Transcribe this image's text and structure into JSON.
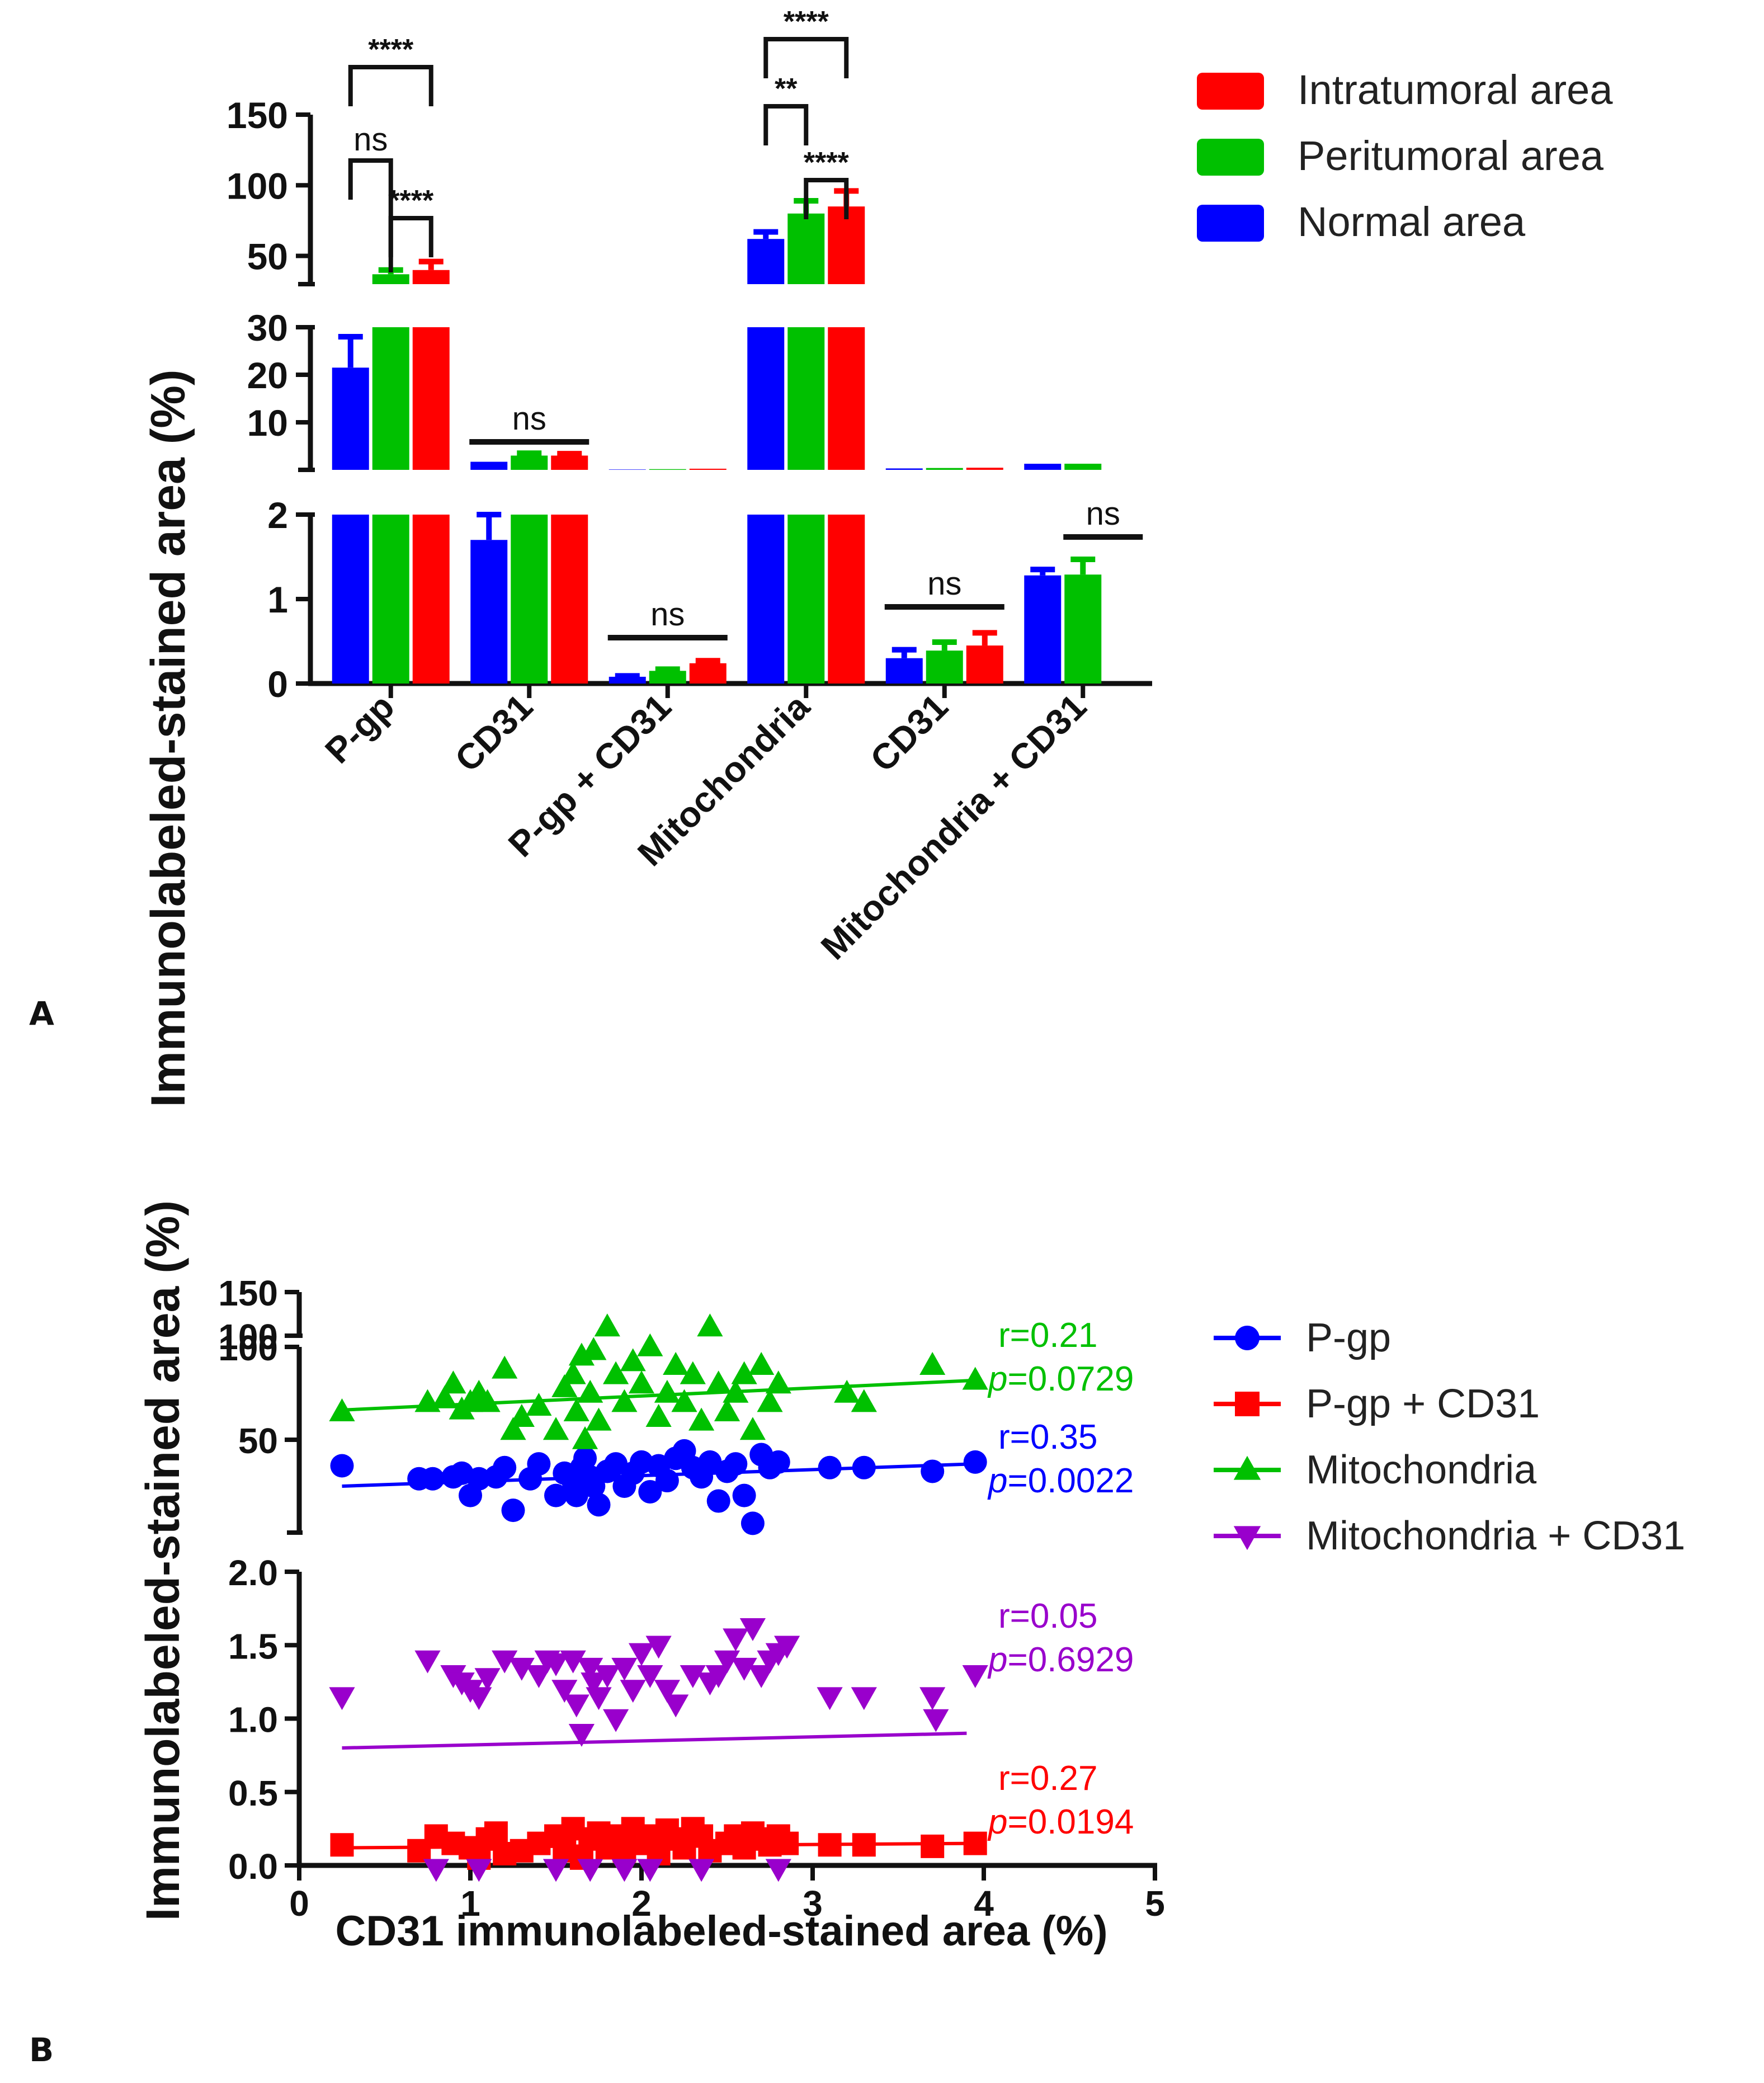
{
  "panel_labels": {
    "a": "A",
    "b": "B"
  },
  "chart_data": [
    {
      "type": "bar",
      "panel": "A",
      "ylabel": "Immunolabeled-stained area (%)",
      "y_segments": [
        {
          "range": [
            0,
            2
          ],
          "ticks": [
            "0",
            "1",
            "2"
          ]
        },
        {
          "range": [
            0,
            30
          ],
          "ticks": [
            "10",
            "20",
            "30"
          ]
        },
        {
          "range": [
            30,
            150
          ],
          "ticks": [
            "50",
            "100",
            "150"
          ]
        }
      ],
      "categories": [
        "P-gp",
        "CD31",
        "P-gp + CD31",
        "Mitochondria",
        "CD31",
        "Mitochondria + CD31"
      ],
      "series": [
        {
          "name": "Intratumoral area",
          "color": "#ff0000",
          "values": [
            40,
            3,
            0.24,
            85,
            0.45,
            null
          ],
          "errors": [
            6,
            0.4,
            0.03,
            11,
            0.15,
            null
          ]
        },
        {
          "name": "Peritumoral area",
          "color": "#00c000",
          "values": [
            37,
            3,
            0.15,
            80,
            0.39,
            1.29
          ],
          "errors": [
            3,
            0.5,
            0.02,
            9,
            0.1,
            0.18
          ]
        },
        {
          "name": "Normal area",
          "color": "#0000ff",
          "values": [
            21.5,
            1.7,
            0.08,
            62,
            0.3,
            1.28
          ],
          "errors": [
            6.5,
            0.3,
            0.01,
            5,
            0.1,
            0.07
          ]
        }
      ],
      "legend": [
        "Intratumoral area",
        "Peritumoral area",
        "Normal area"
      ],
      "legend_position": "top-right",
      "significance": [
        {
          "group": 0,
          "from": 0,
          "to": 1,
          "label": "****"
        },
        {
          "group": 0,
          "from": 1,
          "to": 2,
          "label": "ns"
        },
        {
          "group": 0,
          "from": 0,
          "to": 2,
          "label": "****"
        },
        {
          "group": 1,
          "from": 0,
          "to": 2,
          "label": "ns"
        },
        {
          "group": 2,
          "from": 0,
          "to": 2,
          "label": "ns"
        },
        {
          "group": 3,
          "from": 0,
          "to": 1,
          "label": "****"
        },
        {
          "group": 3,
          "from": 1,
          "to": 2,
          "label": "**"
        },
        {
          "group": 3,
          "from": 0,
          "to": 2,
          "label": "****"
        },
        {
          "group": 4,
          "from": 0,
          "to": 2,
          "label": "ns"
        },
        {
          "group": 5,
          "from": 0,
          "to": 1,
          "label": "ns"
        }
      ]
    },
    {
      "type": "scatter",
      "panel": "B",
      "xlabel": "CD31 immunolabeled-stained area (%)",
      "ylabel": "Immunolabeled-stained area (%)",
      "xlim": [
        0,
        5
      ],
      "x_ticks": [
        "0",
        "1",
        "2",
        "3",
        "4",
        "5"
      ],
      "y_segments": [
        {
          "range": [
            0,
            2
          ],
          "ticks": [
            "0.0",
            "0.5",
            "1.0",
            "1.5",
            "2.0"
          ]
        },
        {
          "range": [
            0,
            100
          ],
          "ticks": [
            "50",
            "100"
          ]
        },
        {
          "range": [
            100,
            150
          ],
          "ticks": [
            "100",
            "150"
          ]
        }
      ],
      "legend_position": "right",
      "series": [
        {
          "name": "P-gp",
          "marker": "circle",
          "color": "#0000ff",
          "segment": 1,
          "r_label": "r=0.35",
          "p_label": "0.0022",
          "fit": [
            [
              0.25,
              25
            ],
            [
              3.95,
              37
            ]
          ],
          "points": [
            [
              0.25,
              36
            ],
            [
              0.7,
              29
            ],
            [
              0.78,
              29
            ],
            [
              0.9,
              30
            ],
            [
              0.95,
              32
            ],
            [
              1.0,
              20
            ],
            [
              1.05,
              29
            ],
            [
              1.15,
              30
            ],
            [
              1.2,
              35
            ],
            [
              1.25,
              12
            ],
            [
              1.35,
              29
            ],
            [
              1.4,
              37
            ],
            [
              1.5,
              20
            ],
            [
              1.55,
              32
            ],
            [
              1.6,
              28
            ],
            [
              1.62,
              20
            ],
            [
              1.65,
              35
            ],
            [
              1.67,
              40
            ],
            [
              1.7,
              30
            ],
            [
              1.72,
              25
            ],
            [
              1.75,
              15
            ],
            [
              1.8,
              33
            ],
            [
              1.85,
              37
            ],
            [
              1.9,
              25
            ],
            [
              1.95,
              32
            ],
            [
              2.0,
              38
            ],
            [
              2.05,
              22
            ],
            [
              2.1,
              36
            ],
            [
              2.15,
              28
            ],
            [
              2.2,
              40
            ],
            [
              2.25,
              44
            ],
            [
              2.3,
              35
            ],
            [
              2.35,
              30
            ],
            [
              2.4,
              38
            ],
            [
              2.45,
              17
            ],
            [
              2.5,
              33
            ],
            [
              2.55,
              37
            ],
            [
              2.6,
              20
            ],
            [
              2.65,
              5
            ],
            [
              2.7,
              42
            ],
            [
              2.75,
              35
            ],
            [
              2.8,
              38
            ],
            [
              3.1,
              35
            ],
            [
              3.3,
              35
            ],
            [
              3.7,
              33
            ],
            [
              3.95,
              38
            ]
          ]
        },
        {
          "name": "P-gp + CD31",
          "marker": "square",
          "color": "#ff0000",
          "segment": 0,
          "r_label": "r=0.27",
          "p_label": "0.0194",
          "fit": [
            [
              0.25,
              0.12
            ],
            [
              3.95,
              0.15
            ]
          ],
          "points": [
            [
              0.25,
              0.14
            ],
            [
              0.7,
              0.1
            ],
            [
              0.8,
              0.2
            ],
            [
              0.9,
              0.15
            ],
            [
              1.0,
              0.12
            ],
            [
              1.05,
              0.05
            ],
            [
              1.1,
              0.18
            ],
            [
              1.15,
              0.22
            ],
            [
              1.2,
              0.08
            ],
            [
              1.3,
              0.1
            ],
            [
              1.4,
              0.15
            ],
            [
              1.5,
              0.2
            ],
            [
              1.55,
              0.1
            ],
            [
              1.6,
              0.25
            ],
            [
              1.65,
              0.05
            ],
            [
              1.7,
              0.18
            ],
            [
              1.75,
              0.22
            ],
            [
              1.8,
              0.12
            ],
            [
              1.85,
              0.2
            ],
            [
              1.9,
              0.1
            ],
            [
              1.95,
              0.25
            ],
            [
              2.0,
              0.15
            ],
            [
              2.05,
              0.2
            ],
            [
              2.1,
              0.08
            ],
            [
              2.15,
              0.24
            ],
            [
              2.2,
              0.18
            ],
            [
              2.25,
              0.12
            ],
            [
              2.3,
              0.25
            ],
            [
              2.35,
              0.2
            ],
            [
              2.4,
              0.1
            ],
            [
              2.5,
              0.15
            ],
            [
              2.55,
              0.2
            ],
            [
              2.6,
              0.12
            ],
            [
              2.65,
              0.22
            ],
            [
              2.7,
              0.18
            ],
            [
              2.75,
              0.14
            ],
            [
              2.8,
              0.2
            ],
            [
              2.85,
              0.15
            ],
            [
              3.1,
              0.14
            ],
            [
              3.3,
              0.14
            ],
            [
              3.7,
              0.13
            ],
            [
              3.95,
              0.15
            ]
          ]
        },
        {
          "name": "Mitochondria",
          "marker": "triangle-up",
          "color": "#00c000",
          "segment": 1,
          "r_label": "r=0.21",
          "p_label": "0.0729",
          "fit": [
            [
              0.25,
              66
            ],
            [
              3.95,
              82
            ]
          ],
          "points": [
            [
              0.25,
              65
            ],
            [
              0.75,
              70
            ],
            [
              0.85,
              72
            ],
            [
              0.9,
              80
            ],
            [
              0.95,
              66
            ],
            [
              1.0,
              70
            ],
            [
              1.05,
              75
            ],
            [
              1.1,
              70
            ],
            [
              1.2,
              88
            ],
            [
              1.25,
              55
            ],
            [
              1.3,
              62
            ],
            [
              1.4,
              68
            ],
            [
              1.5,
              55
            ],
            [
              1.55,
              78
            ],
            [
              1.6,
              85
            ],
            [
              1.62,
              65
            ],
            [
              1.65,
              95
            ],
            [
              1.67,
              50
            ],
            [
              1.7,
              75
            ],
            [
              1.72,
              98
            ],
            [
              1.75,
              60
            ],
            [
              1.8,
              110
            ],
            [
              1.85,
              85
            ],
            [
              1.9,
              70
            ],
            [
              1.95,
              92
            ],
            [
              2.0,
              80
            ],
            [
              2.05,
              100
            ],
            [
              2.1,
              62
            ],
            [
              2.15,
              75
            ],
            [
              2.2,
              90
            ],
            [
              2.25,
              70
            ],
            [
              2.3,
              85
            ],
            [
              2.35,
              60
            ],
            [
              2.4,
              110
            ],
            [
              2.45,
              80
            ],
            [
              2.5,
              65
            ],
            [
              2.55,
              75
            ],
            [
              2.6,
              85
            ],
            [
              2.65,
              55
            ],
            [
              2.7,
              90
            ],
            [
              2.75,
              70
            ],
            [
              2.8,
              80
            ],
            [
              3.2,
              75
            ],
            [
              3.3,
              70
            ],
            [
              3.7,
              90
            ],
            [
              3.95,
              82
            ]
          ]
        },
        {
          "name": "Mitochondria + CD31",
          "marker": "triangle-down",
          "color": "#9900cc",
          "segment": 0,
          "r_label": "r=0.05",
          "p_label": "0.6929",
          "fit": [
            [
              0.25,
              0.8
            ],
            [
              3.9,
              0.9
            ]
          ],
          "points": [
            [
              0.25,
              1.15
            ],
            [
              0.75,
              1.4
            ],
            [
              0.9,
              1.3
            ],
            [
              0.95,
              1.25
            ],
            [
              1.0,
              1.2
            ],
            [
              1.05,
              1.15
            ],
            [
              1.1,
              1.28
            ],
            [
              1.2,
              1.4
            ],
            [
              1.3,
              1.35
            ],
            [
              1.4,
              1.3
            ],
            [
              1.45,
              1.4
            ],
            [
              1.5,
              1.38
            ],
            [
              1.55,
              1.2
            ],
            [
              1.6,
              1.4
            ],
            [
              1.62,
              1.1
            ],
            [
              1.65,
              0.9
            ],
            [
              1.7,
              1.35
            ],
            [
              1.72,
              1.25
            ],
            [
              1.75,
              1.15
            ],
            [
              1.8,
              1.3
            ],
            [
              1.85,
              1.0
            ],
            [
              1.9,
              1.35
            ],
            [
              1.95,
              1.2
            ],
            [
              2.0,
              1.45
            ],
            [
              2.05,
              1.3
            ],
            [
              2.1,
              1.5
            ],
            [
              2.15,
              1.2
            ],
            [
              2.2,
              1.1
            ],
            [
              2.3,
              1.3
            ],
            [
              2.4,
              1.25
            ],
            [
              2.45,
              1.3
            ],
            [
              2.5,
              1.4
            ],
            [
              2.55,
              1.55
            ],
            [
              2.6,
              1.35
            ],
            [
              2.65,
              1.62
            ],
            [
              2.7,
              1.3
            ],
            [
              2.75,
              1.4
            ],
            [
              2.8,
              1.45
            ],
            [
              2.85,
              1.5
            ],
            [
              3.1,
              1.15
            ],
            [
              3.3,
              1.15
            ],
            [
              3.7,
              1.15
            ],
            [
              3.72,
              1.0
            ],
            [
              3.95,
              1.3
            ],
            [
              0.8,
              -0.02
            ],
            [
              1.05,
              -0.02
            ],
            [
              1.5,
              -0.02
            ],
            [
              1.7,
              -0.02
            ],
            [
              1.9,
              -0.02
            ],
            [
              2.05,
              -0.02
            ],
            [
              2.35,
              -0.02
            ],
            [
              2.8,
              -0.02
            ]
          ]
        }
      ]
    }
  ]
}
